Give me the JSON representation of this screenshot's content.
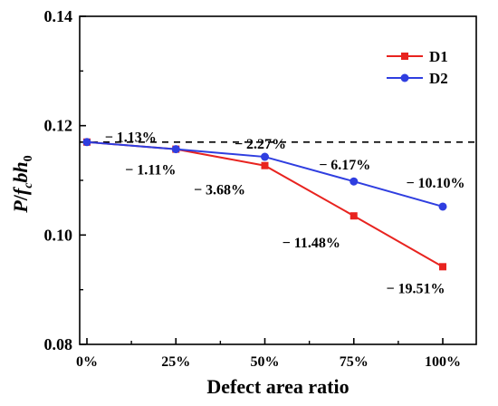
{
  "chart_data": {
    "type": "line",
    "title": "",
    "xlabel": "Defect area ratio",
    "ylabel": {
      "base": "P",
      "slash": "/",
      "f": "f",
      "fsub": "c",
      "b": "b",
      "h": "h",
      "hsub": "0"
    },
    "categories": [
      "0%",
      "25%",
      "50%",
      "75%",
      "100%"
    ],
    "x": [
      0,
      25,
      50,
      75,
      100
    ],
    "xlim": [
      0,
      110
    ],
    "ylim": [
      0.08,
      0.14
    ],
    "yticks": [
      {
        "value": 0.08,
        "label": "0.08"
      },
      {
        "value": 0.1,
        "label": "0.10"
      },
      {
        "value": 0.12,
        "label": "0.12"
      },
      {
        "value": 0.14,
        "label": "0.14"
      }
    ],
    "reference_line": {
      "y": 0.117,
      "style": "dashed"
    },
    "legend_position": "top-right",
    "series": [
      {
        "name": "D1",
        "color": "#e8231f",
        "marker": "square",
        "values": [
          0.117,
          0.1157,
          0.1127,
          0.1035,
          0.0942
        ]
      },
      {
        "name": "D2",
        "color": "#2f3ee0",
        "marker": "circle",
        "values": [
          0.117,
          0.1157,
          0.1143,
          0.1098,
          0.1052
        ]
      }
    ],
    "annotations": [
      {
        "text": "− 1.13%",
        "x": 25,
        "series": "D2"
      },
      {
        "text": "− 2.27%",
        "x": 50,
        "series": "D2"
      },
      {
        "text": "− 6.17%",
        "x": 75,
        "series": "D2"
      },
      {
        "text": "− 10.10%",
        "x": 100,
        "series": "D2"
      },
      {
        "text": "− 1.11%",
        "x": 25,
        "series": "D1"
      },
      {
        "text": "− 3.68%",
        "x": 50,
        "series": "D1"
      },
      {
        "text": "− 11.48%",
        "x": 75,
        "series": "D1"
      },
      {
        "text": "− 19.51%",
        "x": 100,
        "series": "D1"
      }
    ],
    "grid": false
  }
}
